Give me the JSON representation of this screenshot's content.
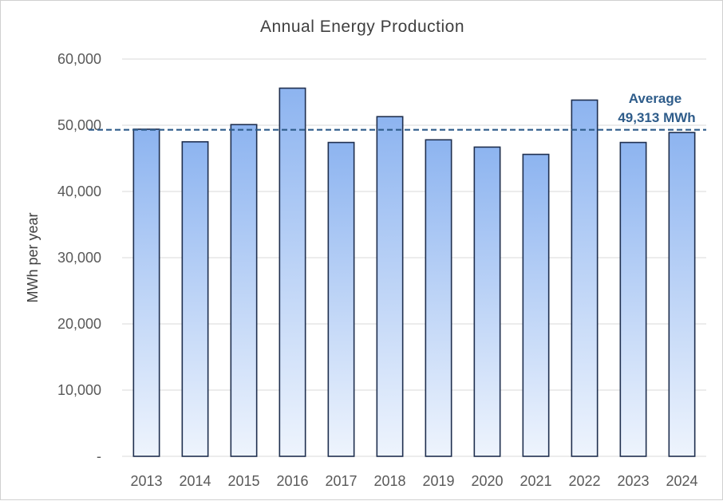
{
  "chart_data": {
    "type": "bar",
    "title": "Annual Energy Production",
    "xlabel": "",
    "ylabel": "MWh per year",
    "categories": [
      "2013",
      "2014",
      "2015",
      "2016",
      "2017",
      "2018",
      "2019",
      "2020",
      "2021",
      "2022",
      "2023",
      "2024"
    ],
    "values": [
      49400,
      47500,
      50100,
      55600,
      47400,
      51300,
      47800,
      46700,
      45600,
      53800,
      47400,
      48900
    ],
    "ylim": [
      0,
      60000
    ],
    "yticks": [
      0,
      10000,
      20000,
      30000,
      40000,
      50000,
      60000
    ],
    "ytick_labels": [
      "-",
      "10,000",
      "20,000",
      "30,000",
      "40,000",
      "50,000",
      "60,000"
    ],
    "grid": "horizontal",
    "legend": "none",
    "reference_line": {
      "value": 49313,
      "style": "dashed",
      "label_line1": "Average",
      "label_line2": "49,313 MWh"
    },
    "colors": {
      "bar_top": "#8db4f0",
      "bar_bottom": "#eef4fd",
      "bar_outline": "#1f2f4f",
      "average_line": "#2e5c8a",
      "gridline": "#d9d9d9"
    }
  }
}
